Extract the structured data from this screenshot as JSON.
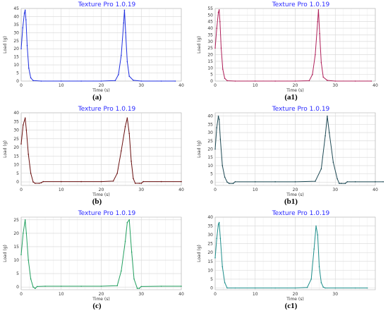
{
  "chart_data": [
    {
      "type": "line",
      "id": "a",
      "title": "Texture Pro 1.0.19",
      "caption": "(a)",
      "xlabel": "Time (s)",
      "ylabel": "Load (g)",
      "xlim": [
        0,
        40
      ],
      "ylim": [
        0,
        45
      ],
      "xticks": [
        0,
        10,
        20,
        30,
        40
      ],
      "yticks": [
        0,
        5,
        10,
        15,
        20,
        25,
        30,
        35,
        40,
        45
      ],
      "grid": true,
      "color": "#2030e0",
      "series": [
        {
          "x": [
            0,
            0.4,
            0.8,
            1.0,
            1.2,
            1.5,
            1.9,
            2.4,
            3,
            5,
            10,
            15,
            20,
            23.5,
            24.3,
            25,
            25.6,
            25.8,
            26.1,
            26.5,
            27,
            28,
            30,
            35,
            38.5
          ],
          "y": [
            20,
            33,
            42,
            44,
            38,
            22,
            8,
            2,
            0.3,
            0,
            0,
            0,
            0,
            0.3,
            4,
            16,
            36,
            44,
            30,
            12,
            3,
            0.5,
            0,
            0,
            0
          ]
        }
      ]
    },
    {
      "type": "line",
      "id": "a1",
      "title": "Texture Pro 1.0.19",
      "caption": "(a1)",
      "xlabel": "Time (s)",
      "ylabel": "Load (g)",
      "xlim": [
        0,
        40
      ],
      "ylim": [
        0,
        55
      ],
      "xticks": [
        0,
        10,
        20,
        30,
        40
      ],
      "yticks": [
        0,
        5,
        10,
        15,
        20,
        25,
        30,
        35,
        40,
        45,
        50,
        55
      ],
      "grid": true,
      "color": "#b0205a",
      "series": [
        {
          "x": [
            0,
            0.4,
            0.8,
            1.0,
            1.2,
            1.5,
            1.9,
            2.4,
            3,
            5,
            10,
            15,
            20,
            23.5,
            24.3,
            25,
            25.6,
            25.8,
            26.1,
            26.5,
            27,
            28,
            30,
            35,
            39
          ],
          "y": [
            25,
            40,
            52,
            54,
            45,
            25,
            9,
            2,
            0.3,
            0,
            0,
            0,
            0,
            0.3,
            5,
            20,
            45,
            54,
            36,
            14,
            3,
            0.5,
            0,
            0,
            0
          ]
        }
      ]
    },
    {
      "type": "line",
      "id": "b",
      "title": "Texture Pro 1.0.19",
      "caption": "(b)",
      "xlabel": "Time (s)",
      "ylabel": "Load (g)",
      "xlim": [
        0,
        40
      ],
      "ylim": [
        -2,
        40
      ],
      "xticks": [
        0,
        10,
        20,
        30,
        40
      ],
      "yticks": [
        0,
        5,
        10,
        15,
        20,
        25,
        30,
        35,
        40
      ],
      "grid": true,
      "color": "#6a1010",
      "series": [
        {
          "x": [
            0,
            0.5,
            1.0,
            1.3,
            1.8,
            2.4,
            3,
            3.5,
            4.5,
            5,
            5.5,
            10,
            15,
            20,
            23,
            24,
            25,
            26,
            26.5,
            27,
            27.5,
            28,
            28.5,
            29.5,
            30,
            30.5,
            35,
            40
          ],
          "y": [
            22,
            33,
            37,
            30,
            16,
            5,
            0,
            -0.8,
            -0.8,
            -0.5,
            0.2,
            0.2,
            0.2,
            0.2,
            0.5,
            5,
            18,
            32,
            37,
            28,
            12,
            2,
            -0.8,
            -0.8,
            -0.8,
            0.2,
            0.2,
            0.2
          ]
        }
      ]
    },
    {
      "type": "line",
      "id": "b1",
      "title": "Texture Pro 1.0.19",
      "caption": "(b1)",
      "xlabel": "Time (s)",
      "ylabel": "Load (g)",
      "xlim": [
        0,
        40
      ],
      "ylim": [
        -2,
        42
      ],
      "xticks": [
        0,
        10,
        20,
        30,
        40
      ],
      "yticks": [
        0,
        5,
        10,
        15,
        20,
        25,
        30,
        35,
        40
      ],
      "grid": true,
      "color": "#1f4a55",
      "series": [
        {
          "x": [
            0,
            0.4,
            0.8,
            1.0,
            1.3,
            1.8,
            2.4,
            3,
            3.5,
            4.5,
            5,
            10,
            15,
            20,
            25,
            26.5,
            27.5,
            28,
            28.5,
            29.5,
            30.5,
            31,
            31.5,
            32.5,
            33,
            35,
            40,
            42
          ],
          "y": [
            20,
            33,
            40,
            38,
            26,
            10,
            3,
            0,
            -0.8,
            -0.8,
            0.2,
            0.2,
            0.2,
            0.2,
            0.5,
            8,
            28,
            40,
            30,
            12,
            2,
            -0.8,
            -0.8,
            -0.8,
            0.2,
            0.2,
            0.2,
            0.2
          ]
        }
      ]
    },
    {
      "type": "line",
      "id": "c",
      "title": "Texture Pro 1.0.19",
      "caption": "(c)",
      "xlabel": "Time (s)",
      "ylabel": "Load (g)",
      "xlim": [
        0,
        40
      ],
      "ylim": [
        -1,
        26
      ],
      "xticks": [
        0,
        10,
        20,
        30,
        40
      ],
      "yticks": [
        0,
        5,
        10,
        15,
        20,
        25
      ],
      "grid": true,
      "color": "#23a060",
      "series": [
        {
          "x": [
            0,
            0.5,
            1.0,
            1.3,
            1.8,
            2.4,
            3,
            3.5,
            4,
            6,
            10,
            15,
            20,
            24,
            25,
            26,
            26.5,
            27,
            27.6,
            28.2,
            29,
            29.5,
            30,
            35,
            40
          ],
          "y": [
            12,
            20,
            25,
            20,
            10,
            3,
            0,
            -0.5,
            0.2,
            0.3,
            0.3,
            0.3,
            0.3,
            0.5,
            6,
            17,
            24,
            25,
            13,
            3,
            -0.5,
            -0.5,
            0.2,
            0.3,
            0.3
          ]
        }
      ]
    },
    {
      "type": "line",
      "id": "c1",
      "title": "Texture Pro 1.0.19",
      "caption": "(c1)",
      "xlabel": "Time (s)",
      "ylabel": "Load (g)",
      "xlim": [
        0,
        40
      ],
      "ylim": [
        -1,
        40
      ],
      "xticks": [
        0,
        10,
        20,
        30
      ],
      "yticks": [
        0,
        5,
        10,
        15,
        20,
        25,
        30,
        35,
        40
      ],
      "grid": true,
      "color": "#1f8f8c",
      "series": [
        {
          "x": [
            0,
            0.4,
            0.8,
            1.0,
            1.3,
            1.8,
            2.4,
            3,
            5,
            10,
            15,
            20,
            23,
            24,
            24.7,
            25.2,
            25.6,
            26,
            26.5,
            27,
            27.5,
            30,
            35,
            38
          ],
          "y": [
            17,
            28,
            36,
            37,
            28,
            12,
            3,
            0,
            0,
            0,
            0,
            0,
            0.3,
            5,
            22,
            35,
            30,
            12,
            3,
            0.5,
            0,
            0,
            0,
            0
          ]
        }
      ]
    }
  ]
}
